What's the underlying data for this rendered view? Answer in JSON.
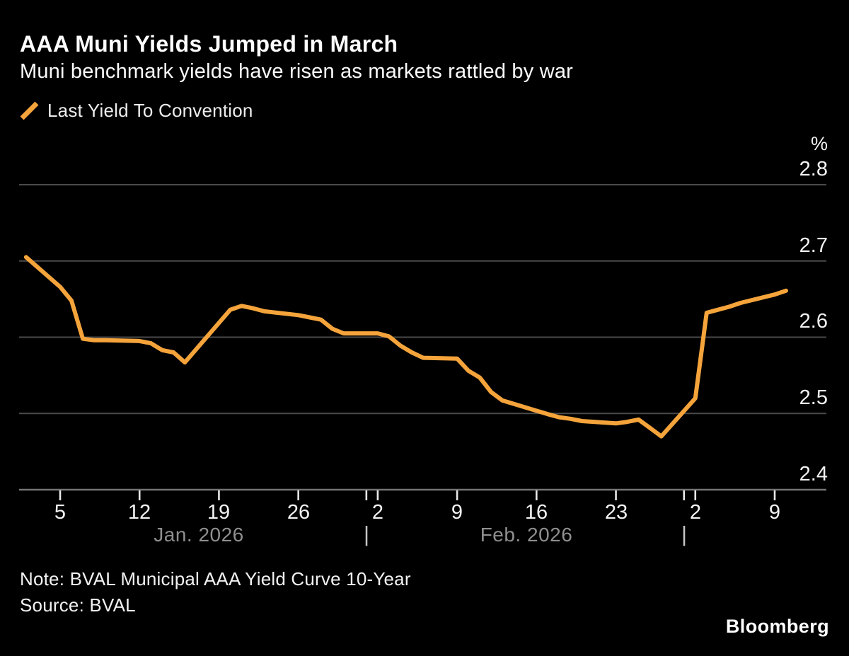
{
  "header": {
    "title": "AAA Muni Yields Jumped in March",
    "subtitle": "Muni benchmark yields have risen as markets rattled by war"
  },
  "footer": {
    "note": "Note: BVAL Municipal AAA Yield Curve 10-Year",
    "source": "Source: BVAL",
    "brand": "Bloomberg"
  },
  "colors": {
    "background": "#000000",
    "line": "#F5A43B",
    "grid": "#4a4a4a",
    "axis_baseline": "#757575",
    "tick": "#e8e8e8",
    "text": "#f2f2f2",
    "month_text": "#8f8f8f",
    "separator": "#c4c4c4"
  },
  "chart_data": {
    "type": "line",
    "title": "AAA Muni Yields Jumped in March",
    "subtitle": "Muni benchmark yields have risen as markets rattled by war",
    "ylabel": "%",
    "ylim": [
      2.4,
      2.8
    ],
    "y_ticks": [
      2.8,
      2.7,
      2.6,
      2.5,
      2.4
    ],
    "grid": true,
    "legend_position": "top-left",
    "x_unit": "calendar day offset from Jan 1, 2026 (business-day data points)",
    "week_ticks": [
      {
        "day": 4,
        "label": "5"
      },
      {
        "day": 11,
        "label": "12"
      },
      {
        "day": 18,
        "label": "19"
      },
      {
        "day": 25,
        "label": "26"
      },
      {
        "day": 32,
        "label": "2"
      },
      {
        "day": 39,
        "label": "9"
      },
      {
        "day": 46,
        "label": "16"
      },
      {
        "day": 53,
        "label": "23"
      },
      {
        "day": 60,
        "label": "2"
      },
      {
        "day": 67,
        "label": "9"
      }
    ],
    "month_separator_days": [
      31,
      59
    ],
    "month_labels": [
      {
        "label": "Jan. 2026",
        "center_day": 16.2
      },
      {
        "label": "Feb. 2026",
        "center_day": 45.1
      }
    ],
    "series": [
      {
        "name": "Last Yield To Convention",
        "color": "#F5A43B",
        "points": [
          [
            1,
            2.705
          ],
          [
            4,
            2.666
          ],
          [
            5,
            2.648
          ],
          [
            6,
            2.598
          ],
          [
            7,
            2.596
          ],
          [
            8,
            2.596
          ],
          [
            11,
            2.595
          ],
          [
            12,
            2.592
          ],
          [
            13,
            2.583
          ],
          [
            14,
            2.58
          ],
          [
            15,
            2.567
          ],
          [
            19,
            2.636
          ],
          [
            20,
            2.641
          ],
          [
            21,
            2.638
          ],
          [
            22,
            2.634
          ],
          [
            25,
            2.629
          ],
          [
            26,
            2.626
          ],
          [
            27,
            2.623
          ],
          [
            28,
            2.611
          ],
          [
            29,
            2.605
          ],
          [
            32,
            2.605
          ],
          [
            33,
            2.601
          ],
          [
            34,
            2.589
          ],
          [
            35,
            2.58
          ],
          [
            36,
            2.573
          ],
          [
            39,
            2.572
          ],
          [
            40,
            2.556
          ],
          [
            41,
            2.547
          ],
          [
            42,
            2.528
          ],
          [
            43,
            2.517
          ],
          [
            47,
            2.499
          ],
          [
            48,
            2.495
          ],
          [
            49,
            2.493
          ],
          [
            50,
            2.49
          ],
          [
            53,
            2.487
          ],
          [
            54,
            2.489
          ],
          [
            55,
            2.492
          ],
          [
            56,
            2.481
          ],
          [
            57,
            2.47
          ],
          [
            60,
            2.52
          ],
          [
            61,
            2.632
          ],
          [
            62,
            2.636
          ],
          [
            63,
            2.64
          ],
          [
            64,
            2.645
          ],
          [
            67,
            2.656
          ],
          [
            68,
            2.661
          ]
        ]
      }
    ]
  }
}
